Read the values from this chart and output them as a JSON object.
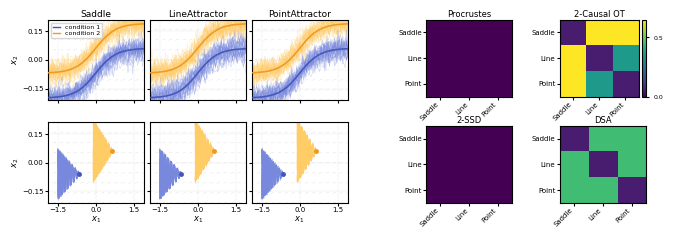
{
  "title_saddle": "Saddle",
  "title_line": "LineAttractor",
  "title_point": "PointAttractor",
  "title_procrustes": "Procrustes",
  "title_causal_ot": "2-Causal OT",
  "title_ssd": "2-SSD",
  "title_dsa": "DSA",
  "color_cond1": "#4455bb",
  "color_cond2": "#ee9922",
  "color_cond1_light": "#7788dd",
  "color_cond2_light": "#ffcc66",
  "xlabel": "$x_1$",
  "ylabel": "$x_2$",
  "xlim": [
    -1.9,
    1.9
  ],
  "ylim": [
    -0.21,
    0.21
  ],
  "row_labels": [
    "Saddle",
    "Line",
    "Point"
  ],
  "col_labels": [
    "Saddle",
    "Line",
    "Point"
  ],
  "procrustes_data": [
    [
      0.0,
      0.0,
      0.0
    ],
    [
      0.0,
      0.0,
      0.0
    ],
    [
      0.0,
      0.0,
      0.0
    ]
  ],
  "causal_ot_data": [
    [
      0.05,
      0.65,
      0.65
    ],
    [
      0.65,
      0.05,
      0.35
    ],
    [
      0.65,
      0.35,
      0.05
    ]
  ],
  "ssd_data": [
    [
      0.0,
      0.0,
      0.0
    ],
    [
      0.0,
      0.0,
      0.0
    ],
    [
      0.0,
      0.0,
      0.0
    ]
  ],
  "dsa_data": [
    [
      0.05,
      0.45,
      0.45
    ],
    [
      0.45,
      0.05,
      0.45
    ],
    [
      0.45,
      0.45,
      0.05
    ]
  ],
  "cmap_main": "viridis",
  "legend_labels": [
    "condition 1",
    "condition 2"
  ],
  "n_traj": 30,
  "n_spiral": 25
}
